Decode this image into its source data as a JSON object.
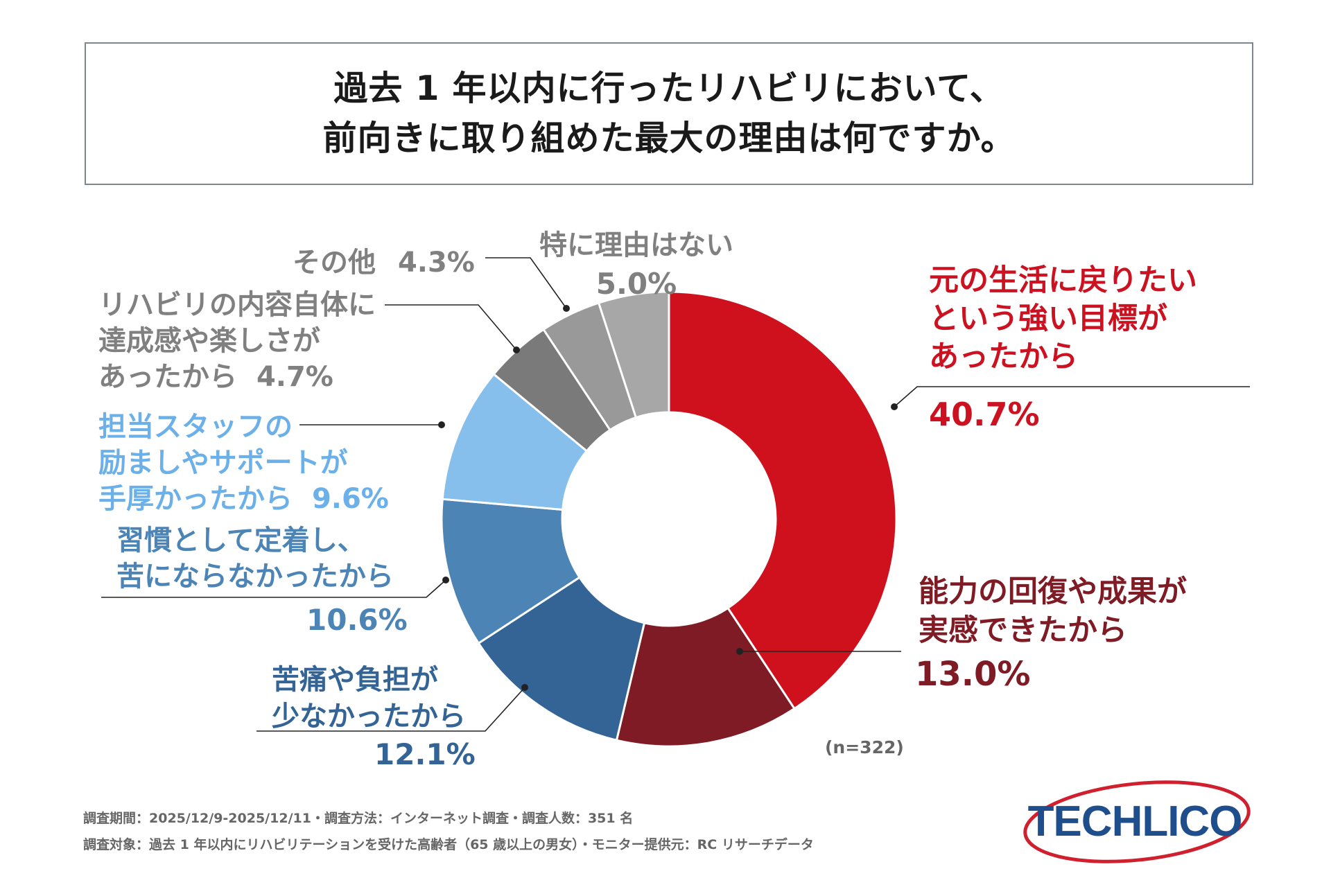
{
  "title": {
    "line1": "過去 1 年以内に行ったリハビリにおいて、",
    "line2": "前向きに取り組めた最大の理由は何ですか。"
  },
  "chart_data": {
    "type": "pie",
    "title": "過去 1 年以内に行ったリハビリにおいて、前向きに取り組めた最大の理由は何ですか。",
    "sample": "(n=322)",
    "slices": [
      {
        "label": "元の生活に戻りたいという強い目標があったから",
        "value": 40.7,
        "value_label": "40.7%",
        "color": "#cf111e"
      },
      {
        "label": "能力の回復や成果が実感できたから",
        "value": 13.0,
        "value_label": "13.0%",
        "color": "#7f1b24"
      },
      {
        "label": "苦痛や負担が少なかったから",
        "value": 12.1,
        "value_label": "12.1%",
        "color": "#336495"
      },
      {
        "label": "習慣として定着し、苦にならなかったから",
        "value": 10.6,
        "value_label": "10.6%",
        "color": "#4d84b6"
      },
      {
        "label": "担当スタッフの励ましやサポートが手厚かったから",
        "value": 9.6,
        "value_label": "9.6%",
        "color": "#86bfeb"
      },
      {
        "label": "リハビリの内容自体に達成感や楽しさがあったから",
        "value": 4.7,
        "value_label": "4.7%",
        "color": "#7a7a7a"
      },
      {
        "label": "その他",
        "value": 4.3,
        "value_label": "4.3%",
        "color": "#999999"
      },
      {
        "label": "特に理由はない",
        "value": 5.0,
        "value_label": "5.0%",
        "color": "#a7a7a7"
      }
    ]
  },
  "labels": {
    "s0": {
      "l1": "元の生活に戻りたい",
      "l2": "という強い目標が",
      "l3": "あったから",
      "pct": "40.7%"
    },
    "s1": {
      "l1": "能力の回復や成果が",
      "l2": "実感できたから",
      "pct": "13.0%"
    },
    "s2": {
      "l1": "苦痛や負担が",
      "l2": "少なかったから",
      "pct": "12.1%"
    },
    "s3": {
      "l1": "習慣として定着し、",
      "l2": "苦にならなかったから",
      "pct": "10.6%"
    },
    "s4": {
      "l1": "担当スタッフの",
      "l2": "励ましやサポートが",
      "l3": "手厚かったから",
      "pct": "9.6%"
    },
    "s5": {
      "l1": "リハビリの内容自体に",
      "l2": "達成感や楽しさが",
      "l3": "あったから",
      "pct": "4.7%"
    },
    "s6": {
      "l1": "その他",
      "pct": "4.3%"
    },
    "s7": {
      "l1": "特に理由はない",
      "pct": "5.0%"
    }
  },
  "colors": {
    "red_label": "#cc1220",
    "dark_red_label": "#7f1b24",
    "navy_label": "#336495",
    "blue_label": "#4d84b6",
    "light_blue_label": "#6bb0e8",
    "gray_label": "#808080",
    "leader_line": "#222222"
  },
  "footer": {
    "line1": "調査期間：2025/12/9-2025/12/11・調査方法：インターネット調査・調査人数：351 名",
    "line2": "調査対象：過去 1 年以内にリハビリテーションを受けた高齢者（65 歳以上の男女）・モニター提供元：RC リサーチデータ"
  },
  "logo": {
    "text": "TECHLICO"
  }
}
